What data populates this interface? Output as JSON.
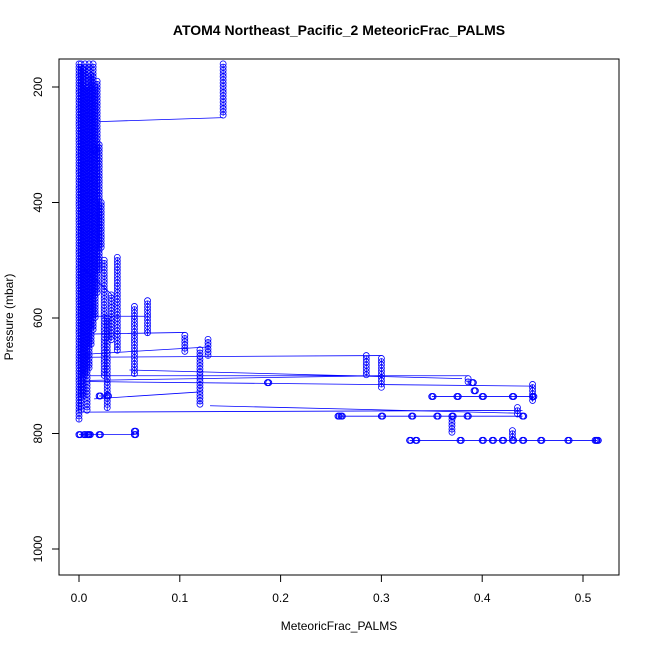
{
  "chart_data": {
    "type": "scatter",
    "title": "ATOM4 Northeast_Pacific_2 MeteoricFrac_PALMS",
    "xlabel": "MeteoricFrac_PALMS",
    "ylabel": "Pressure (mbar)",
    "xlim": [
      -0.02,
      0.535
    ],
    "ylim": [
      1047,
      155
    ],
    "y_reversed": true,
    "grid": false,
    "legend": "none",
    "x_ticks": [
      0.0,
      0.1,
      0.2,
      0.3,
      0.4,
      0.5
    ],
    "x_tick_labels": [
      "0.0",
      "0.1",
      "0.2",
      "0.3",
      "0.4",
      "0.5"
    ],
    "y_ticks": [
      200,
      400,
      600,
      800,
      1000
    ],
    "y_tick_labels": [
      "200",
      "400",
      "600",
      "800",
      "1000"
    ],
    "marker": "open-circle",
    "color": "#0000ff",
    "columns": [
      {
        "x": 0.0,
        "p": [
          160,
          780
        ]
      },
      {
        "x": 0.002,
        "p": [
          160,
          760
        ]
      },
      {
        "x": 0.004,
        "p": [
          170,
          740
        ]
      },
      {
        "x": 0.006,
        "p": [
          160,
          700
        ]
      },
      {
        "x": 0.008,
        "p": [
          200,
          760
        ]
      },
      {
        "x": 0.01,
        "p": [
          160,
          690
        ]
      },
      {
        "x": 0.012,
        "p": [
          180,
          650
        ]
      },
      {
        "x": 0.014,
        "p": [
          160,
          620
        ]
      },
      {
        "x": 0.016,
        "p": [
          200,
          600
        ]
      },
      {
        "x": 0.018,
        "p": [
          190,
          560
        ]
      },
      {
        "x": 0.02,
        "p": [
          300,
          520
        ]
      },
      {
        "x": 0.022,
        "p": [
          400,
          480
        ]
      },
      {
        "x": 0.025,
        "p": [
          500,
          700
        ]
      },
      {
        "x": 0.028,
        "p": [
          600,
          760
        ]
      },
      {
        "x": 0.032,
        "p": [
          560,
          640
        ]
      },
      {
        "x": 0.038,
        "p": [
          495,
          660
        ]
      },
      {
        "x": 0.055,
        "p": [
          580,
          700
        ]
      },
      {
        "x": 0.068,
        "p": [
          570,
          630
        ]
      },
      {
        "x": 0.105,
        "p": [
          630,
          660
        ]
      },
      {
        "x": 0.128,
        "p": [
          637,
          670
        ]
      },
      {
        "x": 0.12,
        "p": [
          655,
          750
        ]
      },
      {
        "x": 0.143,
        "p": [
          160,
          250
        ]
      },
      {
        "x": 0.285,
        "p": [
          665,
          700
        ]
      },
      {
        "x": 0.3,
        "p": [
          670,
          720
        ]
      },
      {
        "x": 0.386,
        "p": [
          705,
          715
        ]
      },
      {
        "x": 0.45,
        "p": [
          715,
          745
        ]
      },
      {
        "x": 0.37,
        "p": [
          770,
          800
        ]
      },
      {
        "x": 0.435,
        "p": [
          755,
          770
        ]
      },
      {
        "x": 0.43,
        "p": [
          795,
          810
        ]
      }
    ],
    "segments": [
      {
        "x": [
          0.02,
          0.143
        ],
        "p": [
          260,
          253
        ]
      },
      {
        "x": [
          0.005,
          0.036
        ],
        "p": [
          515,
          565
        ]
      },
      {
        "x": [
          0.004,
          0.07
        ],
        "p": [
          597,
          597
        ]
      },
      {
        "x": [
          0.004,
          0.105
        ],
        "p": [
          628,
          625
        ]
      },
      {
        "x": [
          0.004,
          0.13
        ],
        "p": [
          663,
          650
        ]
      },
      {
        "x": [
          0.004,
          0.3
        ],
        "p": [
          668,
          665
        ]
      },
      {
        "x": [
          0.01,
          0.386
        ],
        "p": [
          700,
          700
        ]
      },
      {
        "x": [
          0.004,
          0.45
        ],
        "p": [
          710,
          718
        ]
      },
      {
        "x": [
          0.015,
          0.12
        ],
        "p": [
          740,
          728
        ]
      },
      {
        "x": [
          0.004,
          0.44
        ],
        "p": [
          763,
          760
        ]
      },
      {
        "x": [
          0.13,
          0.44
        ],
        "p": [
          752,
          765
        ]
      },
      {
        "x": [
          0.01,
          0.3
        ],
        "p": [
          708,
          700
        ]
      },
      {
        "x": [
          0.05,
          0.38
        ],
        "p": [
          690,
          705
        ]
      }
    ],
    "clusters": [
      {
        "x": [
          0.187
        ],
        "p": 712
      },
      {
        "x": [
          0.39
        ],
        "p": 712
      },
      {
        "x": [
          0.35,
          0.375,
          0.4,
          0.43,
          0.45
        ],
        "p": 736
      },
      {
        "x": [
          0.392
        ],
        "p": 726
      },
      {
        "x": [
          0.257,
          0.26,
          0.3,
          0.33,
          0.355,
          0.37,
          0.385,
          0.44
        ],
        "p": 770
      },
      {
        "x": [
          0.328,
          0.334,
          0.378,
          0.4,
          0.41,
          0.42,
          0.43,
          0.44,
          0.458,
          0.485,
          0.512,
          0.514
        ],
        "p": 812
      },
      {
        "x": [
          0.0,
          0.005,
          0.008,
          0.01,
          0.02,
          0.055
        ],
        "p": 802
      },
      {
        "x": [
          0.02,
          0.028
        ],
        "p": 735
      },
      {
        "x": [
          0.055
        ],
        "p": 796
      },
      {
        "x": [
          0.015
        ],
        "p": 309
      }
    ]
  }
}
